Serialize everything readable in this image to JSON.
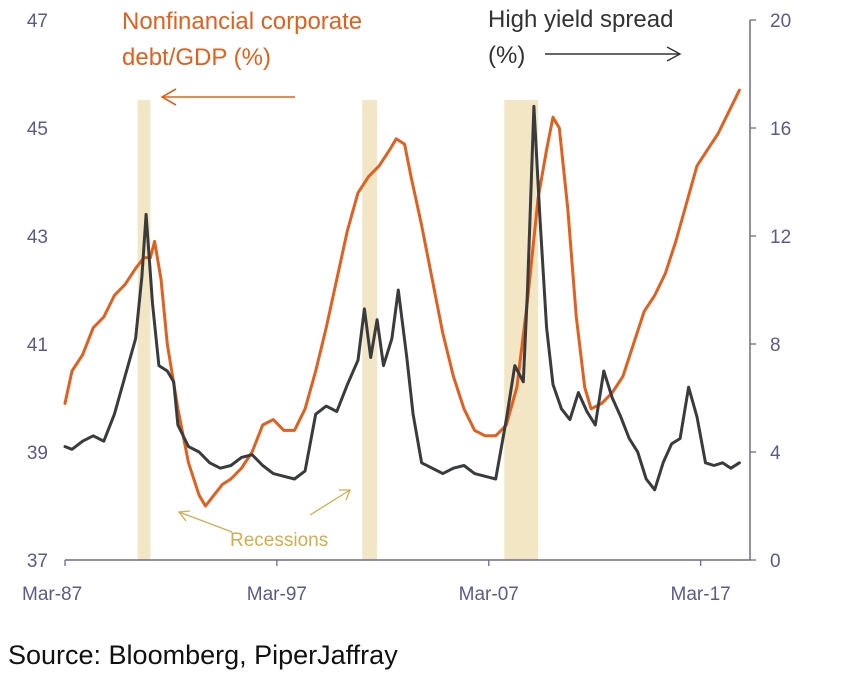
{
  "source": "Source: Bloomberg, PiperJaffray",
  "colors": {
    "debt": "#e0611f",
    "spread": "#3a3b3d",
    "recession": "#f2e6c4",
    "axis": "#6b6b8a",
    "recession_label": "#d1ad52"
  },
  "chart_data": {
    "type": "line",
    "xlim": [
      1987.17,
      2019.5
    ],
    "x_ticks": [
      {
        "label": "Mar-87",
        "x": 1987.17
      },
      {
        "label": "Mar-97",
        "x": 1997.17
      },
      {
        "label": "Mar-07",
        "x": 2007.17
      },
      {
        "label": "Mar-17",
        "x": 2017.17
      }
    ],
    "left_axis": {
      "ylim": [
        37,
        47
      ],
      "ticks": [
        37,
        39,
        41,
        43,
        45,
        47
      ]
    },
    "right_axis": {
      "ylim": [
        0,
        20
      ],
      "ticks": [
        0,
        4,
        8,
        12,
        16,
        20
      ]
    },
    "annotations": {
      "debt_label_line1": "Nonfinancial corporate",
      "debt_label_line2": "debt/GDP (%)",
      "spread_label_line1": "High yield spread",
      "spread_label_line2": "(%)",
      "recessions": "Recessions"
    },
    "recessions": [
      {
        "start": 1990.6,
        "end": 1991.2
      },
      {
        "start": 2001.2,
        "end": 2001.9
      },
      {
        "start": 2007.9,
        "end": 2009.5
      }
    ],
    "series": [
      {
        "axis": "left",
        "points": [
          [
            1987.17,
            39.9
          ],
          [
            1987.5,
            40.5
          ],
          [
            1988.0,
            40.8
          ],
          [
            1988.5,
            41.3
          ],
          [
            1989.0,
            41.5
          ],
          [
            1989.5,
            41.9
          ],
          [
            1990.0,
            42.1
          ],
          [
            1990.5,
            42.4
          ],
          [
            1990.9,
            42.6
          ],
          [
            1991.2,
            42.6
          ],
          [
            1991.4,
            42.9
          ],
          [
            1991.7,
            42.2
          ],
          [
            1992.0,
            41.0
          ],
          [
            1992.5,
            39.8
          ],
          [
            1993.0,
            38.8
          ],
          [
            1993.5,
            38.2
          ],
          [
            1993.8,
            38.0
          ],
          [
            1994.2,
            38.2
          ],
          [
            1994.6,
            38.4
          ],
          [
            1995.0,
            38.5
          ],
          [
            1995.5,
            38.7
          ],
          [
            1996.0,
            39.0
          ],
          [
            1996.5,
            39.5
          ],
          [
            1997.0,
            39.6
          ],
          [
            1997.5,
            39.4
          ],
          [
            1998.0,
            39.4
          ],
          [
            1998.5,
            39.8
          ],
          [
            1999.0,
            40.5
          ],
          [
            1999.5,
            41.3
          ],
          [
            2000.0,
            42.2
          ],
          [
            2000.5,
            43.1
          ],
          [
            2001.0,
            43.8
          ],
          [
            2001.5,
            44.1
          ],
          [
            2002.0,
            44.3
          ],
          [
            2002.5,
            44.6
          ],
          [
            2002.8,
            44.8
          ],
          [
            2003.2,
            44.7
          ],
          [
            2003.5,
            44.1
          ],
          [
            2004.0,
            43.2
          ],
          [
            2004.5,
            42.2
          ],
          [
            2005.0,
            41.2
          ],
          [
            2005.5,
            40.4
          ],
          [
            2006.0,
            39.8
          ],
          [
            2006.5,
            39.4
          ],
          [
            2007.0,
            39.3
          ],
          [
            2007.5,
            39.3
          ],
          [
            2008.0,
            39.5
          ],
          [
            2008.5,
            40.2
          ],
          [
            2009.0,
            41.8
          ],
          [
            2009.5,
            43.7
          ],
          [
            2009.9,
            44.6
          ],
          [
            2010.2,
            45.2
          ],
          [
            2010.5,
            45.0
          ],
          [
            2010.9,
            43.5
          ],
          [
            2011.3,
            41.5
          ],
          [
            2011.7,
            40.2
          ],
          [
            2012.0,
            39.8
          ],
          [
            2012.5,
            39.9
          ],
          [
            2013.0,
            40.1
          ],
          [
            2013.5,
            40.4
          ],
          [
            2014.0,
            41.0
          ],
          [
            2014.5,
            41.6
          ],
          [
            2015.0,
            41.9
          ],
          [
            2015.5,
            42.3
          ],
          [
            2016.0,
            42.9
          ],
          [
            2016.5,
            43.6
          ],
          [
            2017.0,
            44.3
          ],
          [
            2017.5,
            44.6
          ],
          [
            2018.0,
            44.9
          ],
          [
            2018.5,
            45.3
          ],
          [
            2019.0,
            45.7
          ]
        ]
      },
      {
        "axis": "right",
        "points": [
          [
            1987.17,
            4.2
          ],
          [
            1987.5,
            4.1
          ],
          [
            1988.0,
            4.4
          ],
          [
            1988.5,
            4.6
          ],
          [
            1989.0,
            4.4
          ],
          [
            1989.5,
            5.4
          ],
          [
            1990.0,
            6.8
          ],
          [
            1990.5,
            8.2
          ],
          [
            1990.8,
            10.5
          ],
          [
            1991.0,
            12.8
          ],
          [
            1991.3,
            9.5
          ],
          [
            1991.6,
            7.2
          ],
          [
            1992.0,
            7.0
          ],
          [
            1992.3,
            6.6
          ],
          [
            1992.5,
            5.0
          ],
          [
            1993.0,
            4.2
          ],
          [
            1993.5,
            4.0
          ],
          [
            1994.0,
            3.6
          ],
          [
            1994.5,
            3.4
          ],
          [
            1995.0,
            3.5
          ],
          [
            1995.5,
            3.8
          ],
          [
            1996.0,
            3.9
          ],
          [
            1996.5,
            3.5
          ],
          [
            1997.0,
            3.2
          ],
          [
            1997.5,
            3.1
          ],
          [
            1998.0,
            3.0
          ],
          [
            1998.5,
            3.3
          ],
          [
            1999.0,
            5.4
          ],
          [
            1999.5,
            5.7
          ],
          [
            2000.0,
            5.5
          ],
          [
            2000.5,
            6.5
          ],
          [
            2001.0,
            7.4
          ],
          [
            2001.3,
            9.3
          ],
          [
            2001.6,
            7.5
          ],
          [
            2001.9,
            8.9
          ],
          [
            2002.2,
            7.2
          ],
          [
            2002.6,
            8.2
          ],
          [
            2002.9,
            10.0
          ],
          [
            2003.3,
            7.5
          ],
          [
            2003.6,
            5.4
          ],
          [
            2004.0,
            3.6
          ],
          [
            2004.5,
            3.4
          ],
          [
            2005.0,
            3.2
          ],
          [
            2005.5,
            3.4
          ],
          [
            2006.0,
            3.5
          ],
          [
            2006.5,
            3.2
          ],
          [
            2007.0,
            3.1
          ],
          [
            2007.5,
            3.0
          ],
          [
            2008.0,
            5.2
          ],
          [
            2008.4,
            7.2
          ],
          [
            2008.8,
            6.6
          ],
          [
            2009.0,
            10.0
          ],
          [
            2009.3,
            16.8
          ],
          [
            2009.6,
            12.5
          ],
          [
            2009.9,
            8.6
          ],
          [
            2010.2,
            6.5
          ],
          [
            2010.6,
            5.6
          ],
          [
            2011.0,
            5.2
          ],
          [
            2011.4,
            6.2
          ],
          [
            2011.8,
            5.5
          ],
          [
            2012.2,
            5.0
          ],
          [
            2012.6,
            7.0
          ],
          [
            2013.0,
            6.0
          ],
          [
            2013.4,
            5.3
          ],
          [
            2013.8,
            4.5
          ],
          [
            2014.2,
            4.0
          ],
          [
            2014.6,
            3.0
          ],
          [
            2015.0,
            2.6
          ],
          [
            2015.4,
            3.6
          ],
          [
            2015.8,
            4.3
          ],
          [
            2016.2,
            4.5
          ],
          [
            2016.6,
            6.4
          ],
          [
            2017.0,
            5.3
          ],
          [
            2017.4,
            3.6
          ],
          [
            2017.8,
            3.5
          ],
          [
            2018.2,
            3.6
          ],
          [
            2018.6,
            3.4
          ],
          [
            2019.0,
            3.6
          ]
        ]
      }
    ]
  }
}
